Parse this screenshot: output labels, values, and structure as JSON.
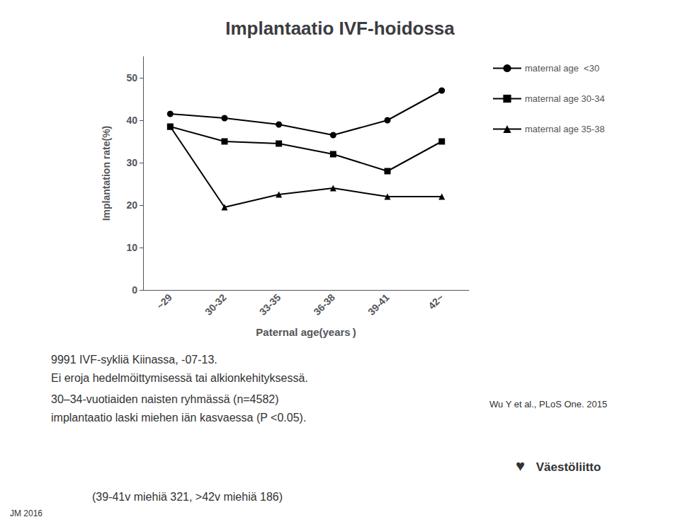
{
  "chart_data": {
    "type": "line",
    "title": "Implantaatio IVF-hoidossa",
    "x_label": "Paternal age(years )",
    "y_label": "Implantation rate(%)",
    "categories": [
      "~29",
      "30-32",
      "33-35",
      "36-38",
      "39-41",
      "42~"
    ],
    "ylim": [
      0,
      55
    ],
    "yticks": [
      0,
      10,
      20,
      30,
      40,
      50
    ],
    "grid": false,
    "legend": "right",
    "series": [
      {
        "name": "maternal age  <30",
        "color": "#000000",
        "marker": "circle",
        "values": [
          41.5,
          40.5,
          39.0,
          36.5,
          40.0,
          47.0
        ]
      },
      {
        "name": "maternal age 30-34",
        "color": "#000000",
        "marker": "square",
        "values": [
          38.5,
          35.0,
          34.5,
          32.0,
          28.0,
          35.0
        ]
      },
      {
        "name": "maternal age 35-38",
        "color": "#000000",
        "marker": "triangle",
        "values": [
          38.5,
          19.5,
          22.5,
          24.0,
          22.0,
          22.0
        ]
      }
    ],
    "annotations": [
      "9991 IVF-sykliä Kiinassa, -07-13.",
      "Ei eroja hedelmöittymisessä tai alkionkehityksessä.",
      "30–34-vuotiaiden naisten ryhmässä (n=4582)",
      "implantaatio laski miehen iän kasvaessa (P <0.05).",
      "(39-41v miehiä 321, >42v miehiä 186)",
      "JM 2016",
      "Wu Y et al., PLoS One. 2015",
      " Väestöliitto",
      "♥"
    ]
  }
}
